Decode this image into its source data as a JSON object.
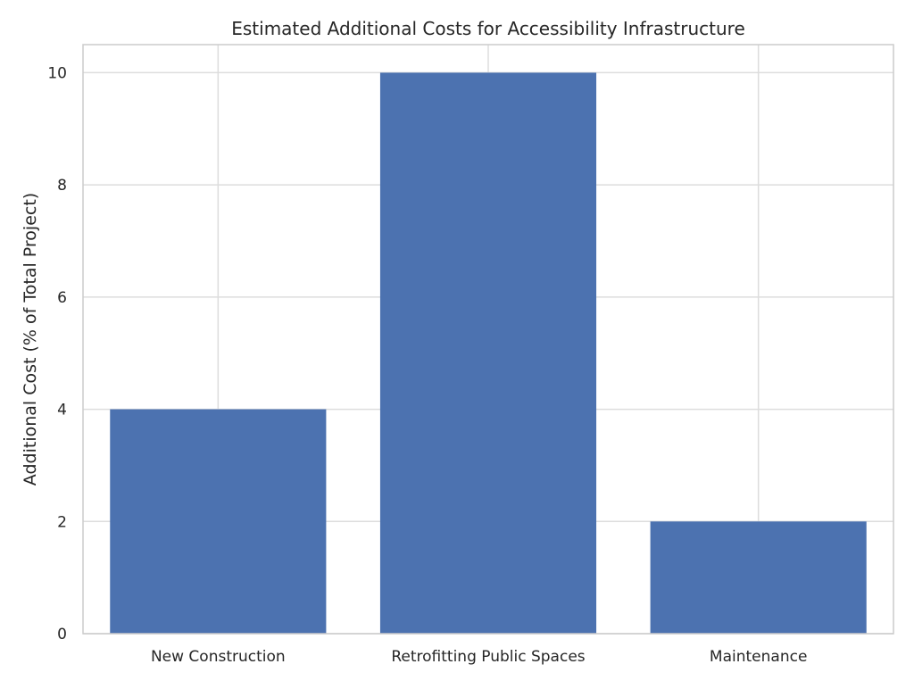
{
  "chart_data": {
    "type": "bar",
    "title": "Estimated Additional Costs for Accessibility Infrastructure",
    "xlabel": "",
    "ylabel": "Additional Cost (% of Total Project)",
    "categories": [
      "New Construction",
      "Retrofitting Public Spaces",
      "Maintenance"
    ],
    "values": [
      4,
      10,
      2
    ],
    "ylim": [
      0,
      10.5
    ],
    "yticks": [
      0,
      2,
      4,
      6,
      8,
      10
    ],
    "grid": true,
    "bar_color": "#4c72b0",
    "grid_color": "#dddddd",
    "axes_edge_color": "#cccccc"
  }
}
